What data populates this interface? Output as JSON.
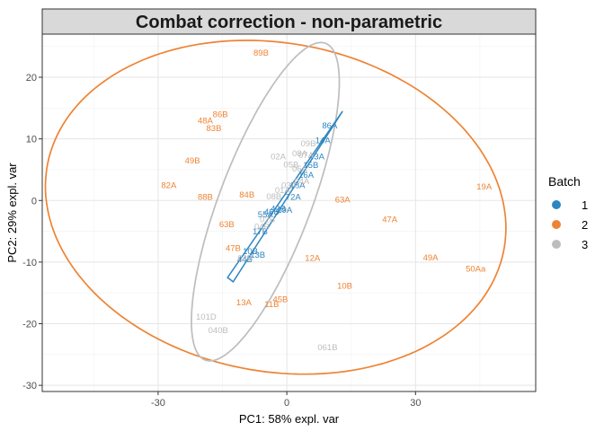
{
  "chart_data": {
    "type": "scatter",
    "title": "Combat correction - non-parametric",
    "xlabel": "PC1: 58% expl. var",
    "ylabel": "PC2: 29% expl. var",
    "xlim": [
      -57,
      58
    ],
    "ylim": [
      -31,
      27
    ],
    "x_ticks": [
      -30,
      0,
      30
    ],
    "y_ticks": [
      -30,
      -20,
      -10,
      0,
      10,
      20
    ],
    "x_tick_labels": [
      "-30",
      "0",
      "30"
    ],
    "y_tick_labels": [
      "-30",
      "-20",
      "-10",
      "0",
      "10",
      "20"
    ],
    "grid": true,
    "legend": {
      "title": "Batch",
      "position": "right",
      "items": [
        {
          "label": "1",
          "color": "#2E86C1"
        },
        {
          "label": "2",
          "color": "#EE8334"
        },
        {
          "label": "3",
          "color": "#BDBDBD"
        }
      ]
    },
    "series": [
      {
        "name": "1",
        "color": "#2E86C1",
        "points": [
          {
            "label": "86A",
            "x": 10,
            "y": 12.2
          },
          {
            "label": "14A",
            "x": 8.4,
            "y": 9.8
          },
          {
            "label": "15B",
            "x": 5.6,
            "y": 5.8
          },
          {
            "label": "43A",
            "x": 7,
            "y": 7.2
          },
          {
            "label": "16A",
            "x": 4.5,
            "y": 4.2
          },
          {
            "label": "18A",
            "x": 2.5,
            "y": 2.5
          },
          {
            "label": "72A",
            "x": 1.5,
            "y": 0.6
          },
          {
            "label": "19A",
            "x": -0.5,
            "y": -1.5
          },
          {
            "label": "42B",
            "x": -2,
            "y": -1.3
          },
          {
            "label": "46B",
            "x": -3.5,
            "y": -1.8
          },
          {
            "label": "55A",
            "x": -5,
            "y": -2.2
          },
          {
            "label": "17B",
            "x": -6.2,
            "y": -5
          },
          {
            "label": "10B",
            "x": -8.5,
            "y": -8.2
          },
          {
            "label": "13B",
            "x": -6.8,
            "y": -8.8
          },
          {
            "label": "44B",
            "x": -9.8,
            "y": -9.5
          }
        ],
        "hull": [
          [
            13,
            14.5
          ],
          [
            -12.5,
            -13.2
          ],
          [
            -13.8,
            -12.5
          ],
          [
            11.3,
            12.8
          ]
        ]
      },
      {
        "name": "2",
        "color": "#EE8334",
        "points": [
          {
            "label": "89B",
            "x": -6,
            "y": 24
          },
          {
            "label": "86B",
            "x": -15.5,
            "y": 14
          },
          {
            "label": "48A",
            "x": -19,
            "y": 13
          },
          {
            "label": "83B",
            "x": -17,
            "y": 11.8
          },
          {
            "label": "49B",
            "x": -22,
            "y": 6.5
          },
          {
            "label": "82A",
            "x": -27.5,
            "y": 2.5
          },
          {
            "label": "88B",
            "x": -19,
            "y": 0.6
          },
          {
            "label": "84B",
            "x": -9.3,
            "y": 1
          },
          {
            "label": "63A",
            "x": 13,
            "y": 0.2
          },
          {
            "label": "19A",
            "x": 46,
            "y": 2.3
          },
          {
            "label": "47A",
            "x": 24,
            "y": -3
          },
          {
            "label": "47B",
            "x": -12.5,
            "y": -7.7
          },
          {
            "label": "63B",
            "x": -14,
            "y": -3.8
          },
          {
            "label": "12A",
            "x": 6,
            "y": -9.3
          },
          {
            "label": "49A",
            "x": 33.5,
            "y": -9.2
          },
          {
            "label": "50Aa",
            "x": 44,
            "y": -11
          },
          {
            "label": "10B",
            "x": 13.5,
            "y": -13.8
          },
          {
            "label": "13A",
            "x": -10,
            "y": -16.5
          },
          {
            "label": "11B",
            "x": -3.5,
            "y": -16.8
          },
          {
            "label": "45B",
            "x": -1.5,
            "y": -16
          }
        ]
      },
      {
        "name": "3",
        "color": "#BDBDBD",
        "points": [
          {
            "label": "09B",
            "x": 5,
            "y": 9.3
          },
          {
            "label": "08A",
            "x": 3,
            "y": 7.7
          },
          {
            "label": "07A",
            "x": 4.5,
            "y": 7.4
          },
          {
            "label": "02A",
            "x": -2,
            "y": 7.2
          },
          {
            "label": "06A",
            "x": 3,
            "y": 5.2
          },
          {
            "label": "05B",
            "x": 1,
            "y": 5.9
          },
          {
            "label": "04A",
            "x": 3.5,
            "y": 3.2
          },
          {
            "label": "03A",
            "x": 0.5,
            "y": 2.5
          },
          {
            "label": "01A",
            "x": -1,
            "y": 1.7
          },
          {
            "label": "08B",
            "x": -3,
            "y": 0.7
          },
          {
            "label": "02B",
            "x": -4.5,
            "y": -3
          },
          {
            "label": "04B",
            "x": -5.8,
            "y": -4.2
          },
          {
            "label": "03B",
            "x": -9.7,
            "y": -9.3
          },
          {
            "label": "101D",
            "x": -18.8,
            "y": -18.8
          },
          {
            "label": "040B",
            "x": -16,
            "y": -21
          },
          {
            "label": "061B",
            "x": 9.5,
            "y": -23.8
          }
        ]
      }
    ],
    "ellipses": [
      {
        "batch": "2",
        "color": "#EE8334",
        "cx": -2.6,
        "cy": -1.1,
        "rx": 53.8,
        "ry": 26.8,
        "angle_deg": -4.8
      },
      {
        "batch": "3",
        "color": "#BDBDBD",
        "cx": -5,
        "cy": -0.2,
        "rx": 29.4,
        "ry": 10,
        "angle_deg": 59.5
      }
    ]
  }
}
